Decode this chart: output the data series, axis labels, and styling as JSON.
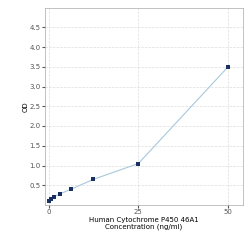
{
  "data_points_x": [
    0,
    0.78,
    1.563,
    3.125,
    6.25,
    12.5,
    25,
    50
  ],
  "data_points_y": [
    0.1,
    0.15,
    0.21,
    0.28,
    0.4,
    0.65,
    1.05,
    3.5
  ],
  "line_color": "#a8c8dc",
  "marker_color": "#1a3060",
  "xlabel_line1": "Human Cytochrome P450 46A1",
  "xlabel_line2": "Concentration (ng/ml)",
  "ylabel": "OD",
  "xlim": [
    -1,
    54
  ],
  "ylim": [
    0,
    5.0
  ],
  "yticks": [
    0.5,
    1.0,
    1.5,
    2.0,
    2.5,
    3.0,
    3.5,
    4.0,
    4.5
  ],
  "xticks": [
    0,
    25,
    50
  ],
  "grid_color": "#dddddd",
  "plot_bg_color": "#ffffff",
  "fig_bg_color": "#ffffff",
  "axis_fontsize": 5,
  "marker_size": 7
}
